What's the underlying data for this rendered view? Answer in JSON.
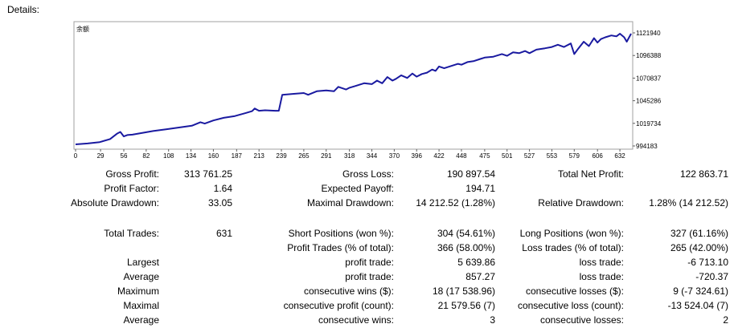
{
  "section_title": "Details:",
  "chart_data": {
    "type": "line",
    "title": "余额",
    "x_ticks": [
      0,
      29,
      56,
      82,
      108,
      134,
      160,
      187,
      213,
      239,
      265,
      291,
      318,
      344,
      370,
      396,
      422,
      448,
      475,
      501,
      527,
      553,
      579,
      606,
      632
    ],
    "y_ticks": [
      994183,
      1019734,
      1045286,
      1070837,
      1096388,
      1121940
    ],
    "xlim": [
      0,
      645
    ],
    "ylim": [
      994183,
      1121940
    ],
    "line_color": "#1a1aa0",
    "series": [
      {
        "x": [
          0,
          14,
          28,
          40,
          48,
          52,
          56,
          60,
          66,
          78,
          90,
          105,
          120,
          135,
          145,
          150,
          160,
          172,
          185,
          198,
          205,
          208,
          213,
          220,
          232,
          236,
          240,
          252,
          265,
          270,
          280,
          291,
          300,
          305,
          314,
          318,
          325,
          335,
          344,
          350,
          352,
          356,
          362,
          368,
          372,
          378,
          385,
          391,
          396,
          402,
          408,
          414,
          418,
          422,
          428,
          436,
          444,
          448,
          455,
          462,
          470,
          475,
          485,
          495,
          501,
          508,
          515,
          522,
          527,
          535,
          545,
          553,
          560,
          567,
          575,
          579,
          584,
          590,
          596,
          602,
          606,
          610,
          615,
          622,
          628,
          632,
          637,
          640,
          645
        ],
        "y": [
          996000,
          997000,
          998500,
          1002000,
          1008000,
          1010000,
          1005000,
          1006500,
          1007000,
          1009000,
          1011000,
          1013000,
          1015000,
          1017000,
          1021000,
          1019500,
          1023000,
          1026000,
          1028000,
          1031500,
          1033500,
          1036500,
          1034000,
          1034500,
          1034000,
          1034000,
          1052000,
          1053000,
          1054000,
          1052000,
          1056000,
          1057000,
          1056000,
          1061000,
          1058000,
          1060000,
          1062000,
          1065000,
          1064000,
          1068000,
          1067000,
          1065000,
          1072000,
          1068000,
          1070000,
          1074000,
          1071000,
          1076000,
          1072500,
          1075500,
          1077000,
          1080500,
          1079000,
          1084000,
          1082000,
          1084500,
          1087000,
          1086000,
          1089000,
          1090000,
          1092500,
          1094000,
          1095000,
          1098000,
          1096000,
          1100000,
          1099000,
          1101500,
          1099000,
          1103000,
          1104500,
          1106000,
          1108500,
          1106000,
          1110000,
          1098000,
          1104500,
          1112000,
          1107000,
          1116000,
          1111000,
          1115000,
          1117000,
          1119000,
          1118000,
          1121000,
          1117000,
          1112000,
          1121000
        ]
      }
    ]
  },
  "stats_rows": [
    [
      {
        "text": "Gross Profit:"
      },
      {
        "text": "313 761.25"
      },
      {
        "text": "Gross Loss:"
      },
      {
        "text": "190 897.54"
      },
      {
        "text": "Total Net Profit:"
      },
      {
        "text": "122 863.71"
      }
    ],
    [
      {
        "text": "Profit Factor:"
      },
      {
        "text": "1.64"
      },
      {
        "text": "Expected Payoff:"
      },
      {
        "text": "194.71"
      },
      {
        "text": ""
      },
      {
        "text": ""
      }
    ],
    [
      {
        "text": "Absolute Drawdown:"
      },
      {
        "text": "33.05"
      },
      {
        "text": "Maximal Drawdown:"
      },
      {
        "text": "14 212.52 (1.28%)"
      },
      {
        "text": "Relative Drawdown:"
      },
      {
        "text": "1.28% (14 212.52)"
      }
    ],
    [
      {
        "text": "Total Trades:"
      },
      {
        "text": "631"
      },
      {
        "text": "Short Positions (won %):"
      },
      {
        "text": "304 (54.61%)"
      },
      {
        "text": "Long Positions (won %):"
      },
      {
        "text": "327 (61.16%)"
      }
    ],
    [
      {
        "text": ""
      },
      {
        "text": ""
      },
      {
        "text": "Profit Trades (% of total):"
      },
      {
        "text": "366 (58.00%)"
      },
      {
        "text": "Loss trades (% of total):"
      },
      {
        "text": "265 (42.00%)"
      }
    ],
    [
      {
        "text": "Largest"
      },
      {
        "text": ""
      },
      {
        "text": "profit trade:"
      },
      {
        "text": "5 639.86"
      },
      {
        "text": "loss trade:"
      },
      {
        "text": "-6 713.10"
      }
    ],
    [
      {
        "text": "Average"
      },
      {
        "text": ""
      },
      {
        "text": "profit trade:"
      },
      {
        "text": "857.27"
      },
      {
        "text": "loss trade:"
      },
      {
        "text": "-720.37"
      }
    ],
    [
      {
        "text": "Maximum"
      },
      {
        "text": ""
      },
      {
        "text": "consecutive wins ($):"
      },
      {
        "text": "18 (17 538.96)"
      },
      {
        "text": "consecutive losses ($):"
      },
      {
        "text": "9 (-7 324.61)"
      }
    ],
    [
      {
        "text": "Maximal"
      },
      {
        "text": ""
      },
      {
        "text": "consecutive profit (count):"
      },
      {
        "text": "21 579.56 (7)"
      },
      {
        "text": "consecutive loss (count):"
      },
      {
        "text": "-13 524.04 (7)"
      }
    ],
    [
      {
        "text": "Average"
      },
      {
        "text": ""
      },
      {
        "text": "consecutive wins:"
      },
      {
        "text": "3"
      },
      {
        "text": "consecutive losses:"
      },
      {
        "text": "2"
      }
    ]
  ]
}
